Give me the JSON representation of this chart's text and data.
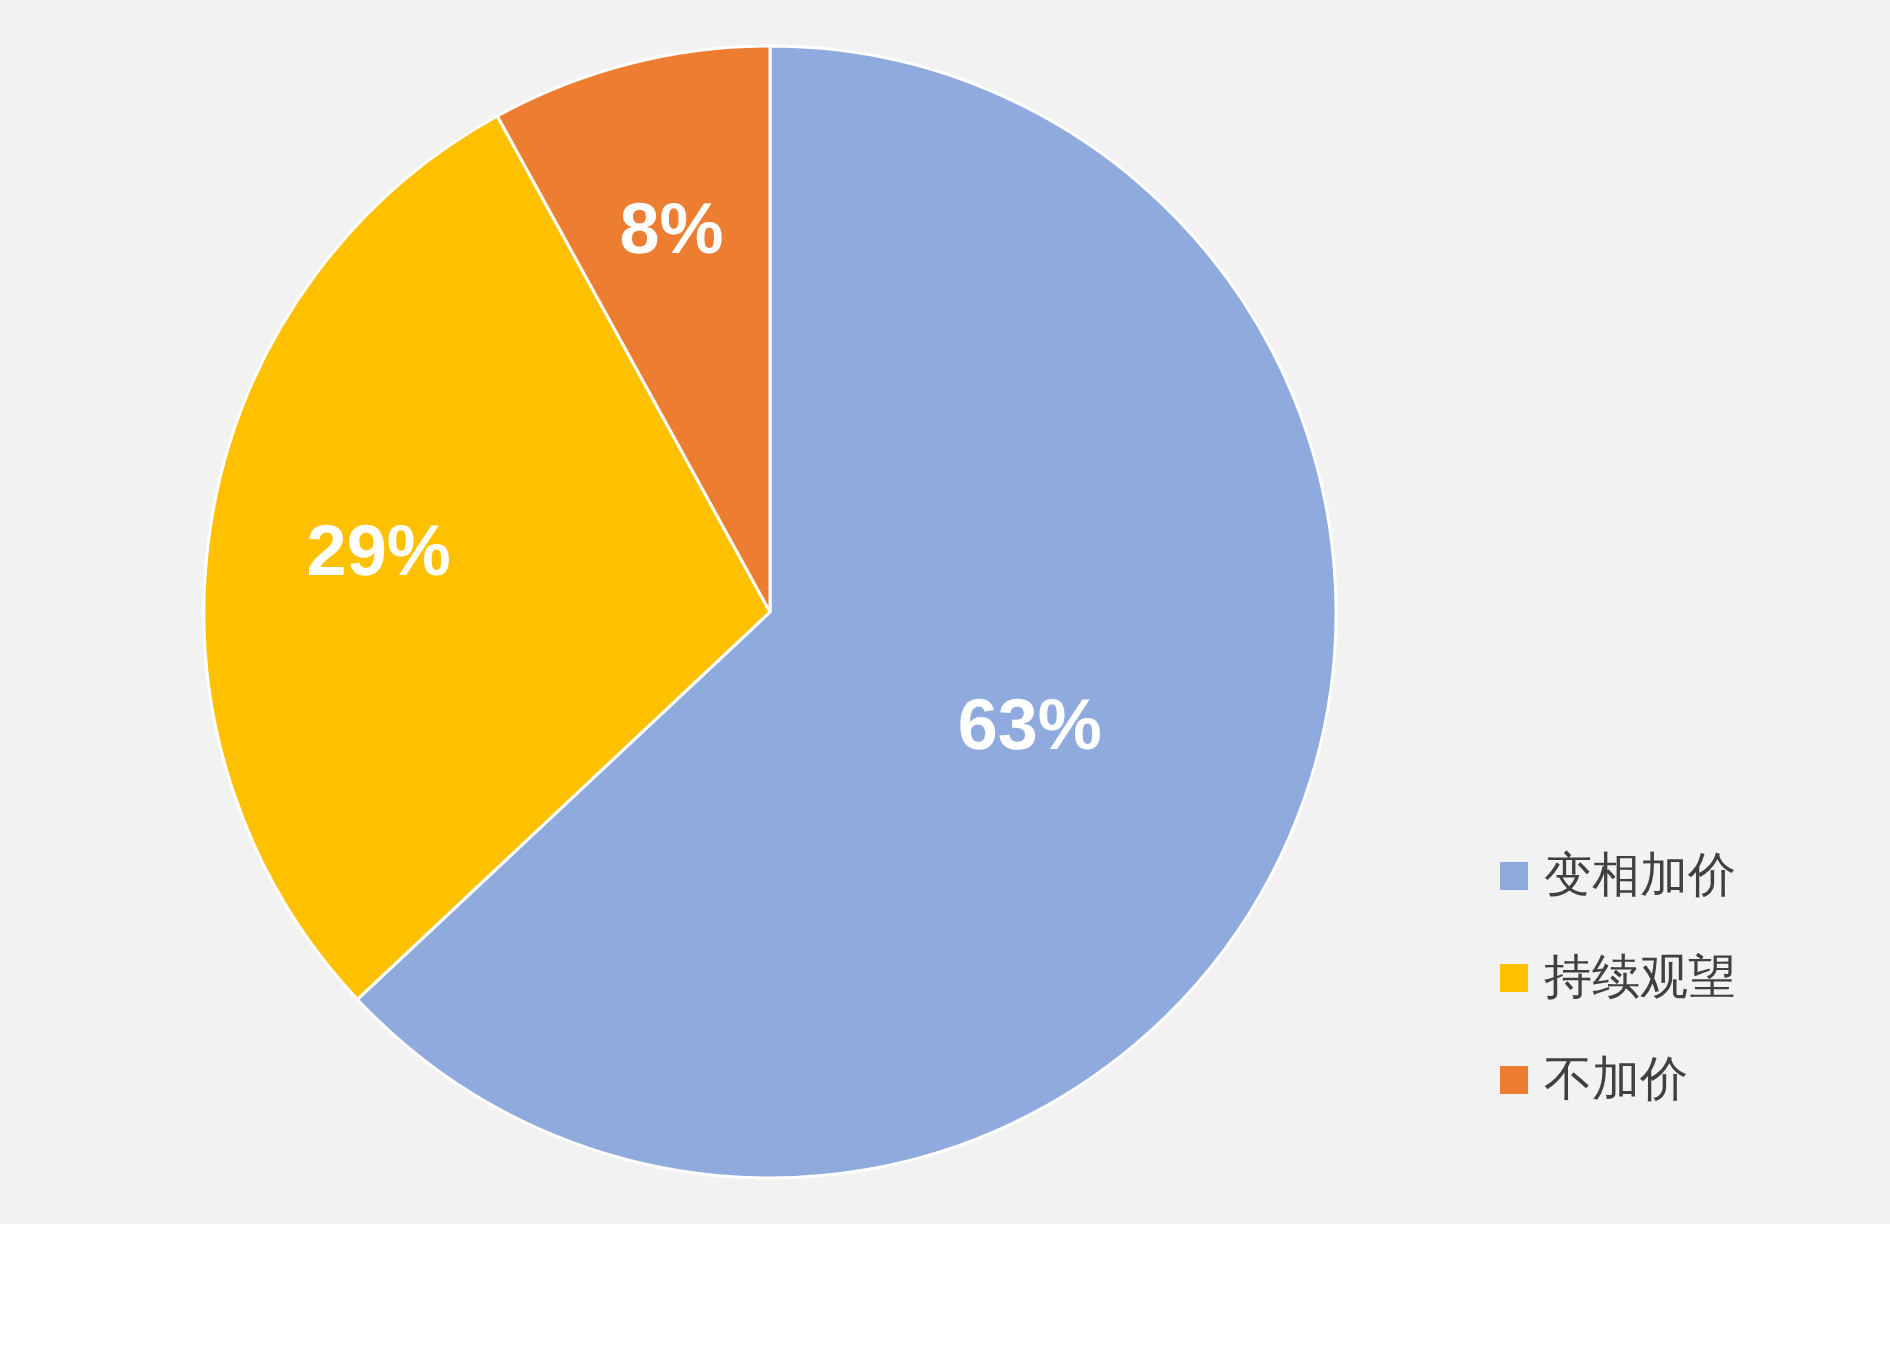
{
  "chart_data": {
    "type": "pie",
    "categories": [
      "变相加价",
      "持续观望",
      "不加价"
    ],
    "values": [
      63,
      29,
      8
    ],
    "value_labels": [
      "63%",
      "29%",
      "8%"
    ],
    "colors": [
      "#8faadc",
      "#ffc000",
      "#ed7d31"
    ],
    "legend": "bottom right"
  }
}
